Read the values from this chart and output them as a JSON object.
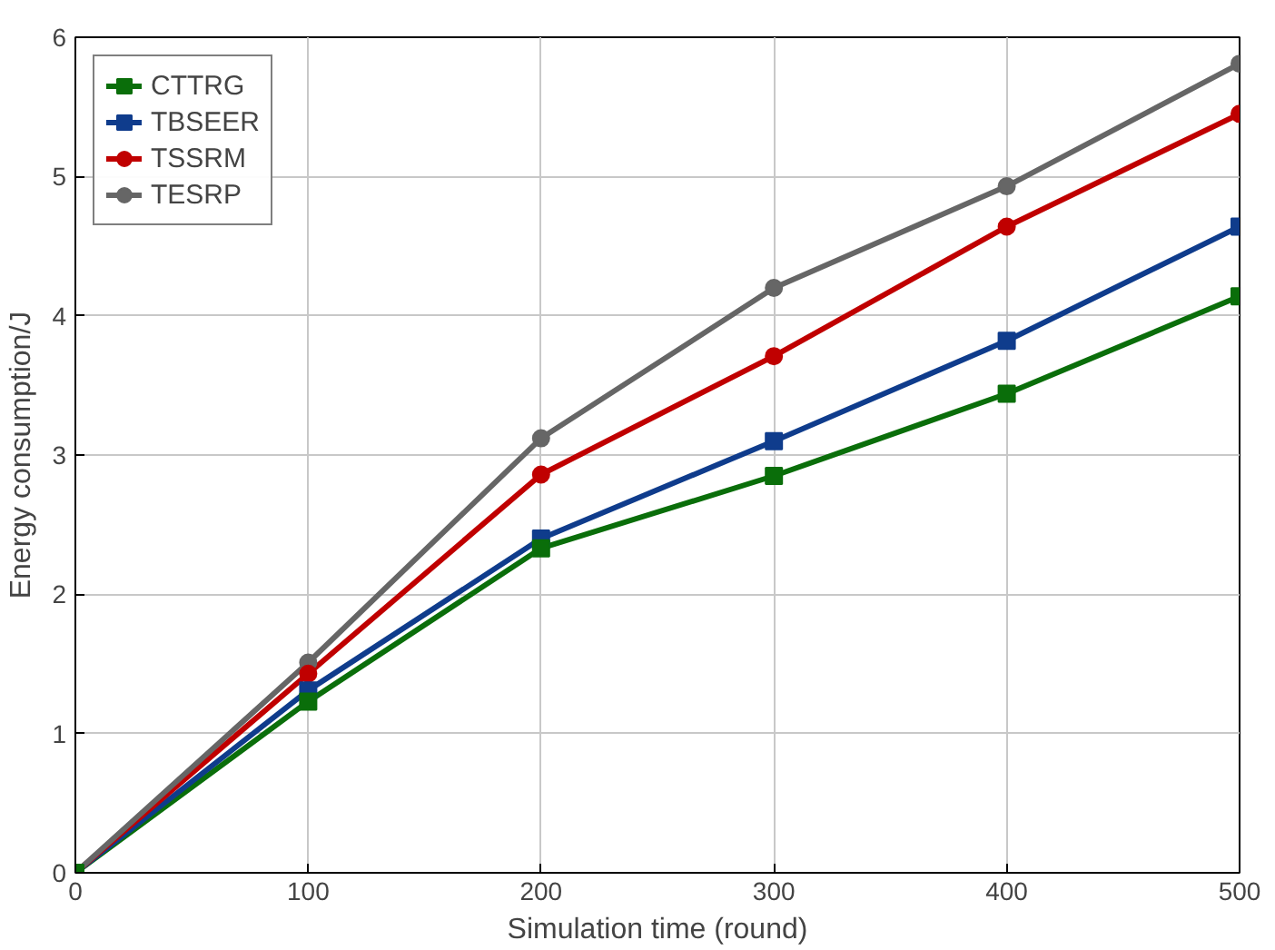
{
  "chart_data": {
    "type": "line",
    "xlabel": "Simulation time (round)",
    "ylabel": "Energy consumption/J",
    "x": [
      0,
      100,
      200,
      300,
      400,
      500
    ],
    "series": [
      {
        "name": "CTTRG",
        "color": "#0a6e0a",
        "marker": "square",
        "values": [
          0,
          1.23,
          2.33,
          2.85,
          3.44,
          4.14
        ]
      },
      {
        "name": "TBSEER",
        "color": "#0f3c8c",
        "marker": "square",
        "values": [
          0,
          1.31,
          2.4,
          3.1,
          3.82,
          4.64
        ]
      },
      {
        "name": "TSSRM",
        "color": "#c00000",
        "marker": "circle",
        "values": [
          0,
          1.43,
          2.86,
          3.71,
          4.64,
          5.45
        ]
      },
      {
        "name": "TESRP",
        "color": "#666666",
        "marker": "circle",
        "values": [
          0,
          1.51,
          3.12,
          4.2,
          4.93,
          5.81
        ]
      }
    ],
    "xlim": [
      0,
      500
    ],
    "ylim": [
      0,
      6
    ],
    "xticks": [
      0,
      100,
      200,
      300,
      400,
      500
    ],
    "yticks": [
      0,
      1,
      2,
      3,
      4,
      5,
      6
    ],
    "grid": true,
    "legend": "top left",
    "line_style": "solid"
  }
}
